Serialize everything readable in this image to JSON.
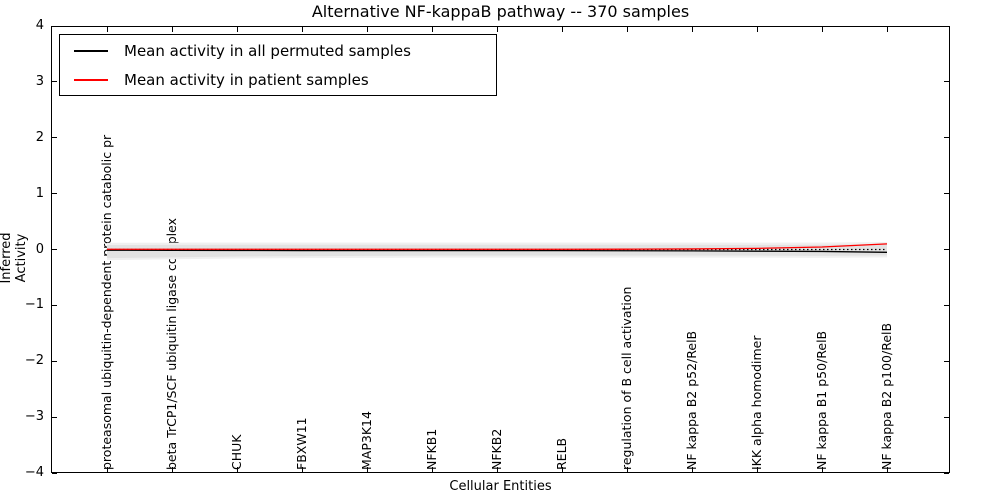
{
  "title": "Alternative NF-kappaB pathway -- 370 samples",
  "axes": {
    "xlabel": "Cellular Entities",
    "ylabel": "Inferred Activity",
    "ytick_labels": [
      "4",
      "3",
      "2",
      "1",
      "0",
      "−1",
      "−2",
      "−3",
      "−4"
    ]
  },
  "legend": {
    "items": [
      {
        "label": "Mean activity in all permuted samples",
        "color": "#000000"
      },
      {
        "label": "Mean activity in patient samples",
        "color": "#ff0000"
      }
    ]
  },
  "chart_data": {
    "type": "line",
    "title": "Alternative NF-kappaB pathway -- 370 samples",
    "xlabel": "Cellular Entities",
    "ylabel": "Inferred Activity",
    "ylim": [
      -4,
      4
    ],
    "yticks": [
      4,
      3,
      2,
      1,
      0,
      -1,
      -2,
      -3,
      -4
    ],
    "grid": false,
    "legend_position": "upper left",
    "categories": [
      "proteasomal ubiquitin-dependent protein catabolic pr",
      "beta TrCP1/SCF ubiquitin ligase complex",
      "CHUK",
      "FBXW11",
      "MAP3K14",
      "NFKB1",
      "NFKB2",
      "RELB",
      "regulation of B cell activation",
      "NF kappa B2 p52/RelB",
      "IKK alpha homodimer",
      "NF kappa B1 p50/RelB",
      "NF kappa B2 p100/RelB"
    ],
    "series": [
      {
        "name": "Mean activity in all permuted samples",
        "color": "#000000",
        "style": "solid",
        "values": [
          -0.012,
          -0.015,
          -0.018,
          -0.02,
          -0.02,
          -0.02,
          -0.02,
          -0.02,
          -0.022,
          -0.025,
          -0.03,
          -0.035,
          -0.05
        ]
      },
      {
        "name": "Mean activity in patient samples",
        "color": "#ff0000",
        "style": "solid",
        "values": [
          0.005,
          0.004,
          0.004,
          0.004,
          0.004,
          0.004,
          0.005,
          0.005,
          0.006,
          0.01,
          0.02,
          0.045,
          0.1
        ]
      },
      {
        "name": "zero reference",
        "color": "#000000",
        "style": "dotted",
        "values": [
          0,
          0,
          0,
          0,
          0,
          0,
          0,
          0,
          0,
          0,
          0,
          0,
          0
        ]
      }
    ],
    "bands": [
      {
        "name": "permuted activity spread (outer)",
        "color": "#f0f0f0",
        "upper": [
          0.12,
          0.122,
          0.125,
          0.125,
          0.125,
          0.125,
          0.125,
          0.125,
          0.125,
          0.125,
          0.122,
          0.125,
          0.135
        ],
        "lower": [
          -0.19,
          -0.175,
          -0.16,
          -0.155,
          -0.15,
          -0.145,
          -0.145,
          -0.145,
          -0.145,
          -0.145,
          -0.145,
          -0.15,
          -0.14
        ]
      },
      {
        "name": "permuted activity spread (inner)",
        "color": "#e2e2e2",
        "upper": [
          0.08,
          0.082,
          0.085,
          0.085,
          0.085,
          0.085,
          0.085,
          0.085,
          0.085,
          0.085,
          0.082,
          0.085,
          0.095
        ],
        "lower": [
          -0.155,
          -0.14,
          -0.125,
          -0.12,
          -0.115,
          -0.11,
          -0.11,
          -0.11,
          -0.11,
          -0.11,
          -0.11,
          -0.115,
          -0.105
        ]
      }
    ]
  }
}
